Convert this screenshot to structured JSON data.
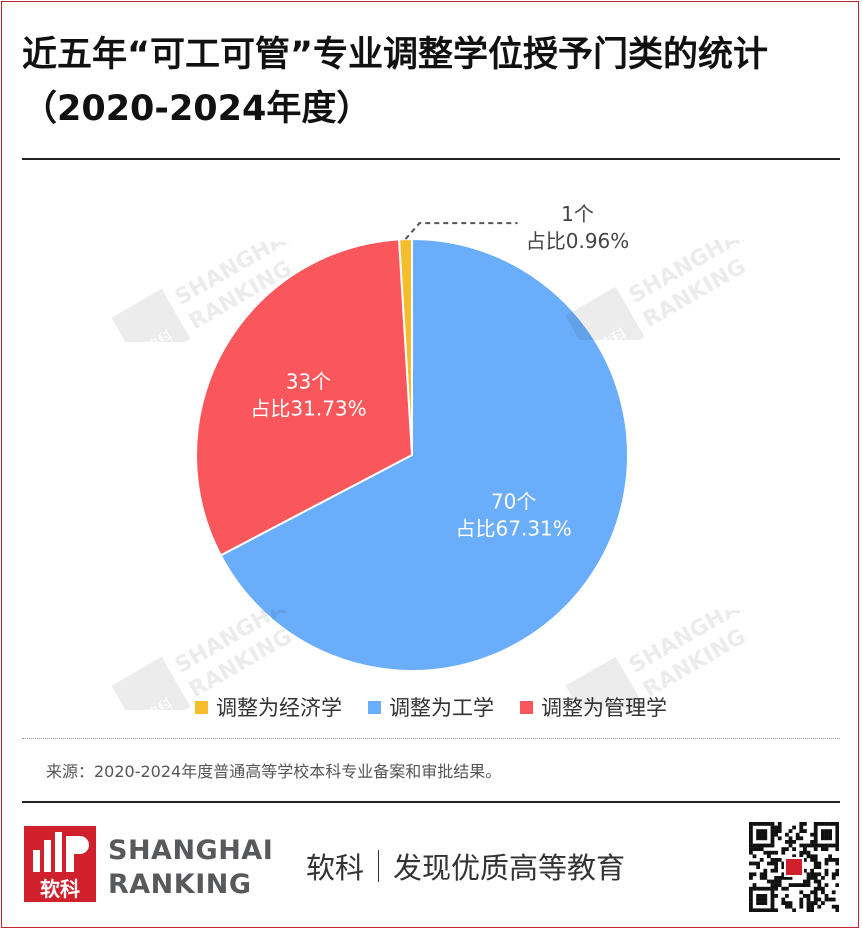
{
  "title_line1": "近五年“可工可管”专业调整学位授予门类的统计",
  "title_line2": "（2020-2024年度）",
  "chart_data": {
    "type": "pie",
    "start_angle_deg": -3.45,
    "slices": [
      {
        "label": "调整为经济学",
        "count": 1,
        "count_text": "1个",
        "share_text": "占比0.96%",
        "percent": 0.96,
        "color": "#f5bd2c"
      },
      {
        "label": "调整为工学",
        "count": 70,
        "count_text": "70个",
        "share_text": "占比67.31%",
        "percent": 67.31,
        "color": "#6aadfa"
      },
      {
        "label": "调整为管理学",
        "count": 33,
        "count_text": "33个",
        "share_text": "占比31.73%",
        "percent": 31.73,
        "color": "#f9575b"
      }
    ]
  },
  "legend": [
    {
      "label": "调整为经济学",
      "color": "#f5bd2c"
    },
    {
      "label": "调整为工学",
      "color": "#6aadfa"
    },
    {
      "label": "调整为管理学",
      "color": "#f9575b"
    }
  ],
  "source": "来源：2020-2024年度普通高等学校本科专业备案和审批结果。",
  "footer": {
    "logo_text": "软科",
    "brand_line1": "SHANGHAI",
    "brand_line2": "RANKING",
    "slogan_left": "软科",
    "slogan_right": "发现优质高等教育"
  },
  "watermark": {
    "line1": "SHANGHAI",
    "line2": "RANKING",
    "logo": "软科"
  }
}
